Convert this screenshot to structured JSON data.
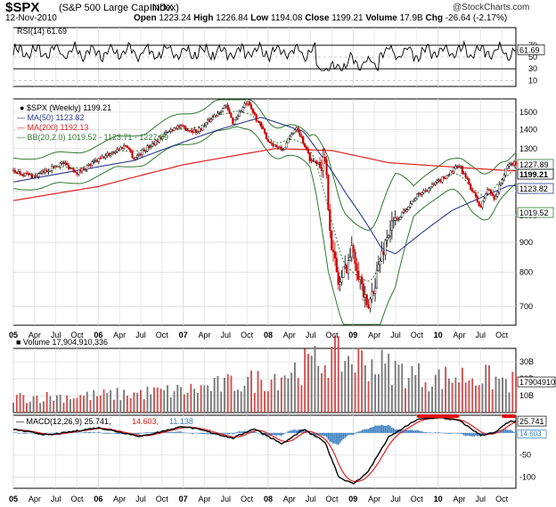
{
  "header": {
    "symbol": "$SPX",
    "name": "(S&P 500 Large Cap Index)",
    "exchange": "INDX",
    "date": "12-Nov-2010",
    "open_label": "Open",
    "open": "1223.24",
    "high_label": "High",
    "high": "1226.84",
    "low_label": "Low",
    "low": "1194.08",
    "close_label": "Close",
    "close": "1199.21",
    "volume_label": "Volume",
    "volume": "17.9B",
    "chg_label": "Chg",
    "chg": "-26.64 (-2.17%)",
    "brand": "@StockCharts.com"
  },
  "colors": {
    "up": "#000000",
    "down": "#cc0000",
    "ma50": "#2b3a8f",
    "ma200": "#e02020",
    "bb": "#2f7a2f",
    "bbmid": "#2f7a2f",
    "vol_up": "#7a7a7a",
    "vol_down": "#d35050",
    "macd": "#000000",
    "signal": "#e02020",
    "hist": "#3a7fc0"
  },
  "chart_data": [
    {
      "type": "line",
      "panel": "rsi",
      "title": "RSI(14) 61.69",
      "ylim": [
        0,
        100
      ],
      "ticks": [
        "70",
        "50",
        "30",
        "10"
      ],
      "value_label": "61.69",
      "start": 58,
      "end": 61.69,
      "min_point": 27
    },
    {
      "type": "candlestick",
      "panel": "price",
      "title": "$SPX (Weekly) 1199.21",
      "scale": "log",
      "ylim": [
        650,
        1580
      ],
      "ticks": [
        "1500",
        "1400",
        "1300",
        "1200",
        "1100",
        "1000",
        "900",
        "800",
        "700"
      ],
      "legend": [
        {
          "key": "price",
          "text": "$SPX (Weekly) 1199.21"
        },
        {
          "key": "ma50",
          "text": "MA(50) 1123.82"
        },
        {
          "key": "ma200",
          "text": "MA(200) 1192.13"
        },
        {
          "key": "bb",
          "text": "BB(20,2.0) 1019.52 - 1123.71 - 1227.89"
        }
      ],
      "right_labels": {
        "bb_upper": "1227.89",
        "close": "1199.21",
        "ma50": "1123.82",
        "bb_lower": "1019.52"
      },
      "anchors": [
        [
          "2005-01",
          1190
        ],
        [
          "2005-04",
          1165
        ],
        [
          "2005-08",
          1230
        ],
        [
          "2005-10",
          1185
        ],
        [
          "2006-05",
          1320
        ],
        [
          "2006-06",
          1250
        ],
        [
          "2006-12",
          1420
        ],
        [
          "2007-03",
          1390
        ],
        [
          "2007-07",
          1540
        ],
        [
          "2007-08",
          1440
        ],
        [
          "2007-10",
          1560
        ],
        [
          "2008-01",
          1340
        ],
        [
          "2008-03",
          1290
        ],
        [
          "2008-05",
          1420
        ],
        [
          "2008-07",
          1240
        ],
        [
          "2008-09",
          1230
        ],
        [
          "2008-10",
          880
        ],
        [
          "2008-11",
          760
        ],
        [
          "2009-01",
          880
        ],
        [
          "2009-03",
          680
        ],
        [
          "2009-06",
          940
        ],
        [
          "2009-10",
          1080
        ],
        [
          "2010-01",
          1140
        ],
        [
          "2010-04",
          1215
        ],
        [
          "2010-07",
          1030
        ],
        [
          "2010-08",
          1110
        ],
        [
          "2010-09",
          1070
        ],
        [
          "2010-11",
          1225
        ]
      ],
      "ma50_anchors": [
        [
          "2005-01",
          1140
        ],
        [
          "2006-06",
          1240
        ],
        [
          "2007-06",
          1400
        ],
        [
          "2007-12",
          1470
        ],
        [
          "2008-06",
          1390
        ],
        [
          "2008-12",
          1090
        ],
        [
          "2009-05",
          880
        ],
        [
          "2009-07",
          860
        ],
        [
          "2010-03",
          1020
        ],
        [
          "2010-11",
          1124
        ]
      ],
      "ma200_anchors": [
        [
          "2005-01",
          1060
        ],
        [
          "2006-01",
          1120
        ],
        [
          "2007-01",
          1220
        ],
        [
          "2008-02",
          1300
        ],
        [
          "2008-10",
          1290
        ],
        [
          "2009-06",
          1230
        ],
        [
          "2010-11",
          1192
        ]
      ],
      "bb_width": 0.06
    },
    {
      "type": "bar",
      "panel": "volume",
      "title": "Volume 17,904,910,336",
      "ticks": [
        "30B",
        "20B",
        "10B"
      ],
      "ylim": [
        0,
        38
      ],
      "value_label": "17904910",
      "profile": [
        [
          "2005-01",
          9
        ],
        [
          "2006-01",
          10
        ],
        [
          "2007-01",
          13
        ],
        [
          "2008-01",
          20
        ],
        [
          "2008-10",
          33
        ],
        [
          "2009-03",
          30
        ],
        [
          "2009-12",
          20
        ],
        [
          "2010-06",
          22
        ],
        [
          "2010-11",
          18
        ]
      ]
    },
    {
      "type": "line",
      "panel": "macd",
      "title": "MACD(12,26,9) 25.741, 14.603, 11.138",
      "legend": [
        {
          "key": "macd",
          "text": "MACD(12,26,9) 25.741"
        },
        {
          "key": "signal",
          "text": "14.603"
        },
        {
          "key": "hist",
          "text": "11.138"
        }
      ],
      "ylim": [
        -125,
        40
      ],
      "ticks": [
        "0",
        "-50",
        "-100"
      ],
      "value_labels": [
        "25.741",
        "14.603"
      ],
      "macd_anchors": [
        [
          "2005-01",
          8
        ],
        [
          "2005-06",
          -5
        ],
        [
          "2006-01",
          12
        ],
        [
          "2006-07",
          -8
        ],
        [
          "2007-01",
          15
        ],
        [
          "2007-04",
          5
        ],
        [
          "2007-08",
          -12
        ],
        [
          "2007-11",
          10
        ],
        [
          "2008-03",
          -25
        ],
        [
          "2008-06",
          8
        ],
        [
          "2008-09",
          -20
        ],
        [
          "2008-11",
          -100
        ],
        [
          "2009-01",
          -115
        ],
        [
          "2009-03",
          -90
        ],
        [
          "2009-06",
          -10
        ],
        [
          "2009-10",
          30
        ],
        [
          "2010-01",
          35
        ],
        [
          "2010-04",
          28
        ],
        [
          "2010-07",
          -5
        ],
        [
          "2010-09",
          0
        ],
        [
          "2010-11",
          25.741
        ]
      ]
    }
  ],
  "x_axis": {
    "labels": [
      {
        "t": "2005-01",
        "text": "05",
        "bold": true
      },
      {
        "t": "2005-04",
        "text": "Apr"
      },
      {
        "t": "2005-07",
        "text": "Jul"
      },
      {
        "t": "2005-10",
        "text": "Oct"
      },
      {
        "t": "2006-01",
        "text": "06",
        "bold": true
      },
      {
        "t": "2006-04",
        "text": "Apr"
      },
      {
        "t": "2006-07",
        "text": "Jul"
      },
      {
        "t": "2006-10",
        "text": "Oct"
      },
      {
        "t": "2007-01",
        "text": "07",
        "bold": true
      },
      {
        "t": "2007-04",
        "text": "Apr"
      },
      {
        "t": "2007-07",
        "text": "Jul"
      },
      {
        "t": "2007-10",
        "text": "Oct"
      },
      {
        "t": "2008-01",
        "text": "08",
        "bold": true
      },
      {
        "t": "2008-04",
        "text": "Apr"
      },
      {
        "t": "2008-07",
        "text": "Jul"
      },
      {
        "t": "2008-10",
        "text": "Oct"
      },
      {
        "t": "2009-01",
        "text": "09",
        "bold": true
      },
      {
        "t": "2009-04",
        "text": "Apr"
      },
      {
        "t": "2009-07",
        "text": "Jul"
      },
      {
        "t": "2009-10",
        "text": "Oct"
      },
      {
        "t": "2010-01",
        "text": "10",
        "bold": true
      },
      {
        "t": "2010-04",
        "text": "Apr"
      },
      {
        "t": "2010-07",
        "text": "Jul"
      },
      {
        "t": "2010-10",
        "text": "Oct"
      }
    ]
  },
  "annotations": {
    "highlight_bars": [
      [
        "2009-10",
        "2010-04"
      ],
      [
        "2010-10",
        "2010-12"
      ]
    ],
    "highlight_color": "#e01010"
  }
}
